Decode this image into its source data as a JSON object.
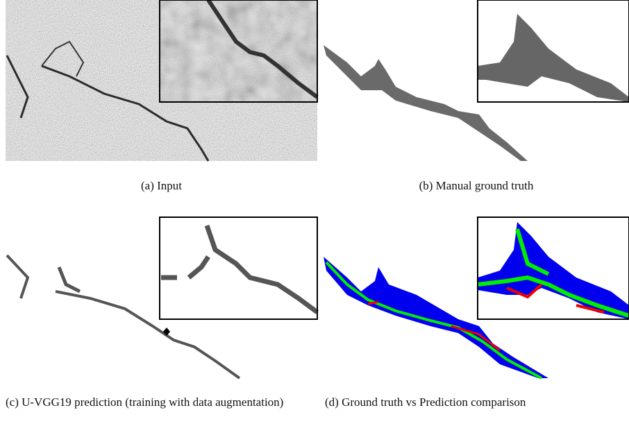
{
  "panels": [
    {
      "caption": "(a) Input"
    },
    {
      "caption": "(b) Manual ground truth"
    },
    {
      "caption": "(c) U-VGG19 prediction (training with data augmentation)"
    },
    {
      "caption": "(d) Ground truth vs Prediction comparison"
    }
  ]
}
